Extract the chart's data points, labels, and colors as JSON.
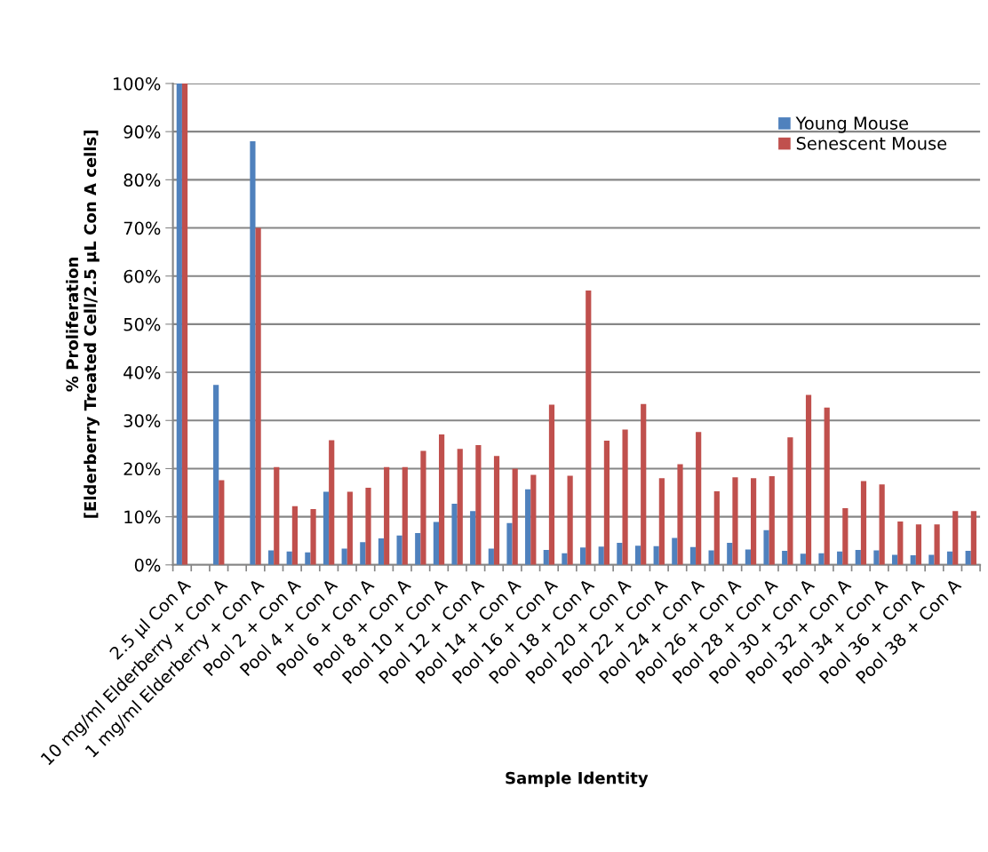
{
  "chart_data": {
    "type": "bar",
    "xlabel": "Sample Identity",
    "ylabel": "% Proliferation\n[Elderberry Treated Cell/2.5 µL Con A cells]",
    "categories": [
      "2.5 µl Con A",
      null,
      "10 mg/ml Elderberry + Con A",
      null,
      "1 mg/ml Elderberry + Con A",
      null,
      "Pool 2 + Con A",
      null,
      "Pool 4 + Con A",
      null,
      "Pool 6 + Con A",
      null,
      "Pool 8 + Con A",
      null,
      "Pool 10 + Con A",
      null,
      "Pool 12 + Con A",
      null,
      "Pool 14 + Con A",
      null,
      "Pool 16 + Con A",
      null,
      "Pool 18 + Con A",
      null,
      "Pool 20 + Con A",
      null,
      "Pool 22 + Con A",
      null,
      "Pool 24 + Con A",
      null,
      "Pool 26 + Con A",
      null,
      "Pool 28 + Con A",
      null,
      "Pool 30 + Con A",
      null,
      "Pool 32 + Con A",
      null,
      "Pool 34 + Con A",
      null,
      "Pool 36 + Con A",
      null,
      "Pool 38 + Con A",
      null
    ],
    "series": [
      {
        "name": "Young Mouse",
        "color": "#4f81bd",
        "values": [
          100,
          null,
          37.4,
          null,
          88,
          3.0,
          2.8,
          2.6,
          15.2,
          3.4,
          4.7,
          5.5,
          6.1,
          6.6,
          8.9,
          12.7,
          11.2,
          3.4,
          8.7,
          15.7,
          3.1,
          2.4,
          3.6,
          3.8,
          4.6,
          4.0,
          3.9,
          5.6,
          3.7,
          3.0,
          4.6,
          3.2,
          7.2,
          2.9,
          2.3,
          2.4,
          2.8,
          3.1,
          3.0,
          2.1,
          2.0,
          2.1,
          2.8,
          2.9
        ]
      },
      {
        "name": "Senescent Mouse",
        "color": "#c0504d",
        "values": [
          100,
          null,
          17.6,
          null,
          70,
          20.3,
          12.2,
          11.6,
          25.9,
          15.2,
          16.0,
          20.3,
          20.3,
          23.7,
          27.1,
          24.1,
          24.9,
          22.6,
          20.0,
          18.7,
          33.3,
          18.5,
          57,
          25.8,
          28.1,
          33.4,
          18.0,
          20.9,
          27.6,
          15.3,
          18.2,
          18.0,
          18.4,
          26.5,
          35.3,
          32.7,
          11.8,
          17.4,
          16.7,
          9.0,
          8.4,
          8.4,
          11.2,
          11.2
        ]
      }
    ],
    "ylim": [
      0,
      100
    ],
    "yticks": [
      {
        "value": 0,
        "label": "0%"
      },
      {
        "value": 10,
        "label": "10%"
      },
      {
        "value": 20,
        "label": "20%"
      },
      {
        "value": 30,
        "label": "30%"
      },
      {
        "value": 40,
        "label": "40%"
      },
      {
        "value": 50,
        "label": "50%"
      },
      {
        "value": 60,
        "label": "60%"
      },
      {
        "value": 70,
        "label": "70%"
      },
      {
        "value": 80,
        "label": "80%"
      },
      {
        "value": 90,
        "label": "90%"
      },
      {
        "value": 100,
        "label": "100%"
      }
    ],
    "grid": "y",
    "legend": "top right"
  }
}
